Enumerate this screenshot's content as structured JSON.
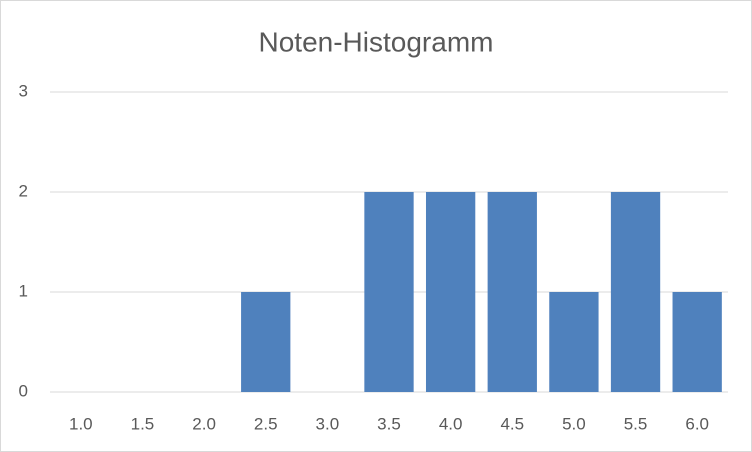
{
  "chart_data": {
    "type": "bar",
    "title": "Noten-Histogramm",
    "categories": [
      "1.0",
      "1.5",
      "2.0",
      "2.5",
      "3.0",
      "3.5",
      "4.0",
      "4.5",
      "5.0",
      "5.5",
      "6.0"
    ],
    "values": [
      0,
      0,
      0,
      1,
      0,
      2,
      2,
      2,
      1,
      2,
      1
    ],
    "color": "#4f81bd",
    "ylim": [
      0,
      3
    ],
    "yticks": [
      0,
      1,
      2,
      3
    ],
    "grid": true
  }
}
